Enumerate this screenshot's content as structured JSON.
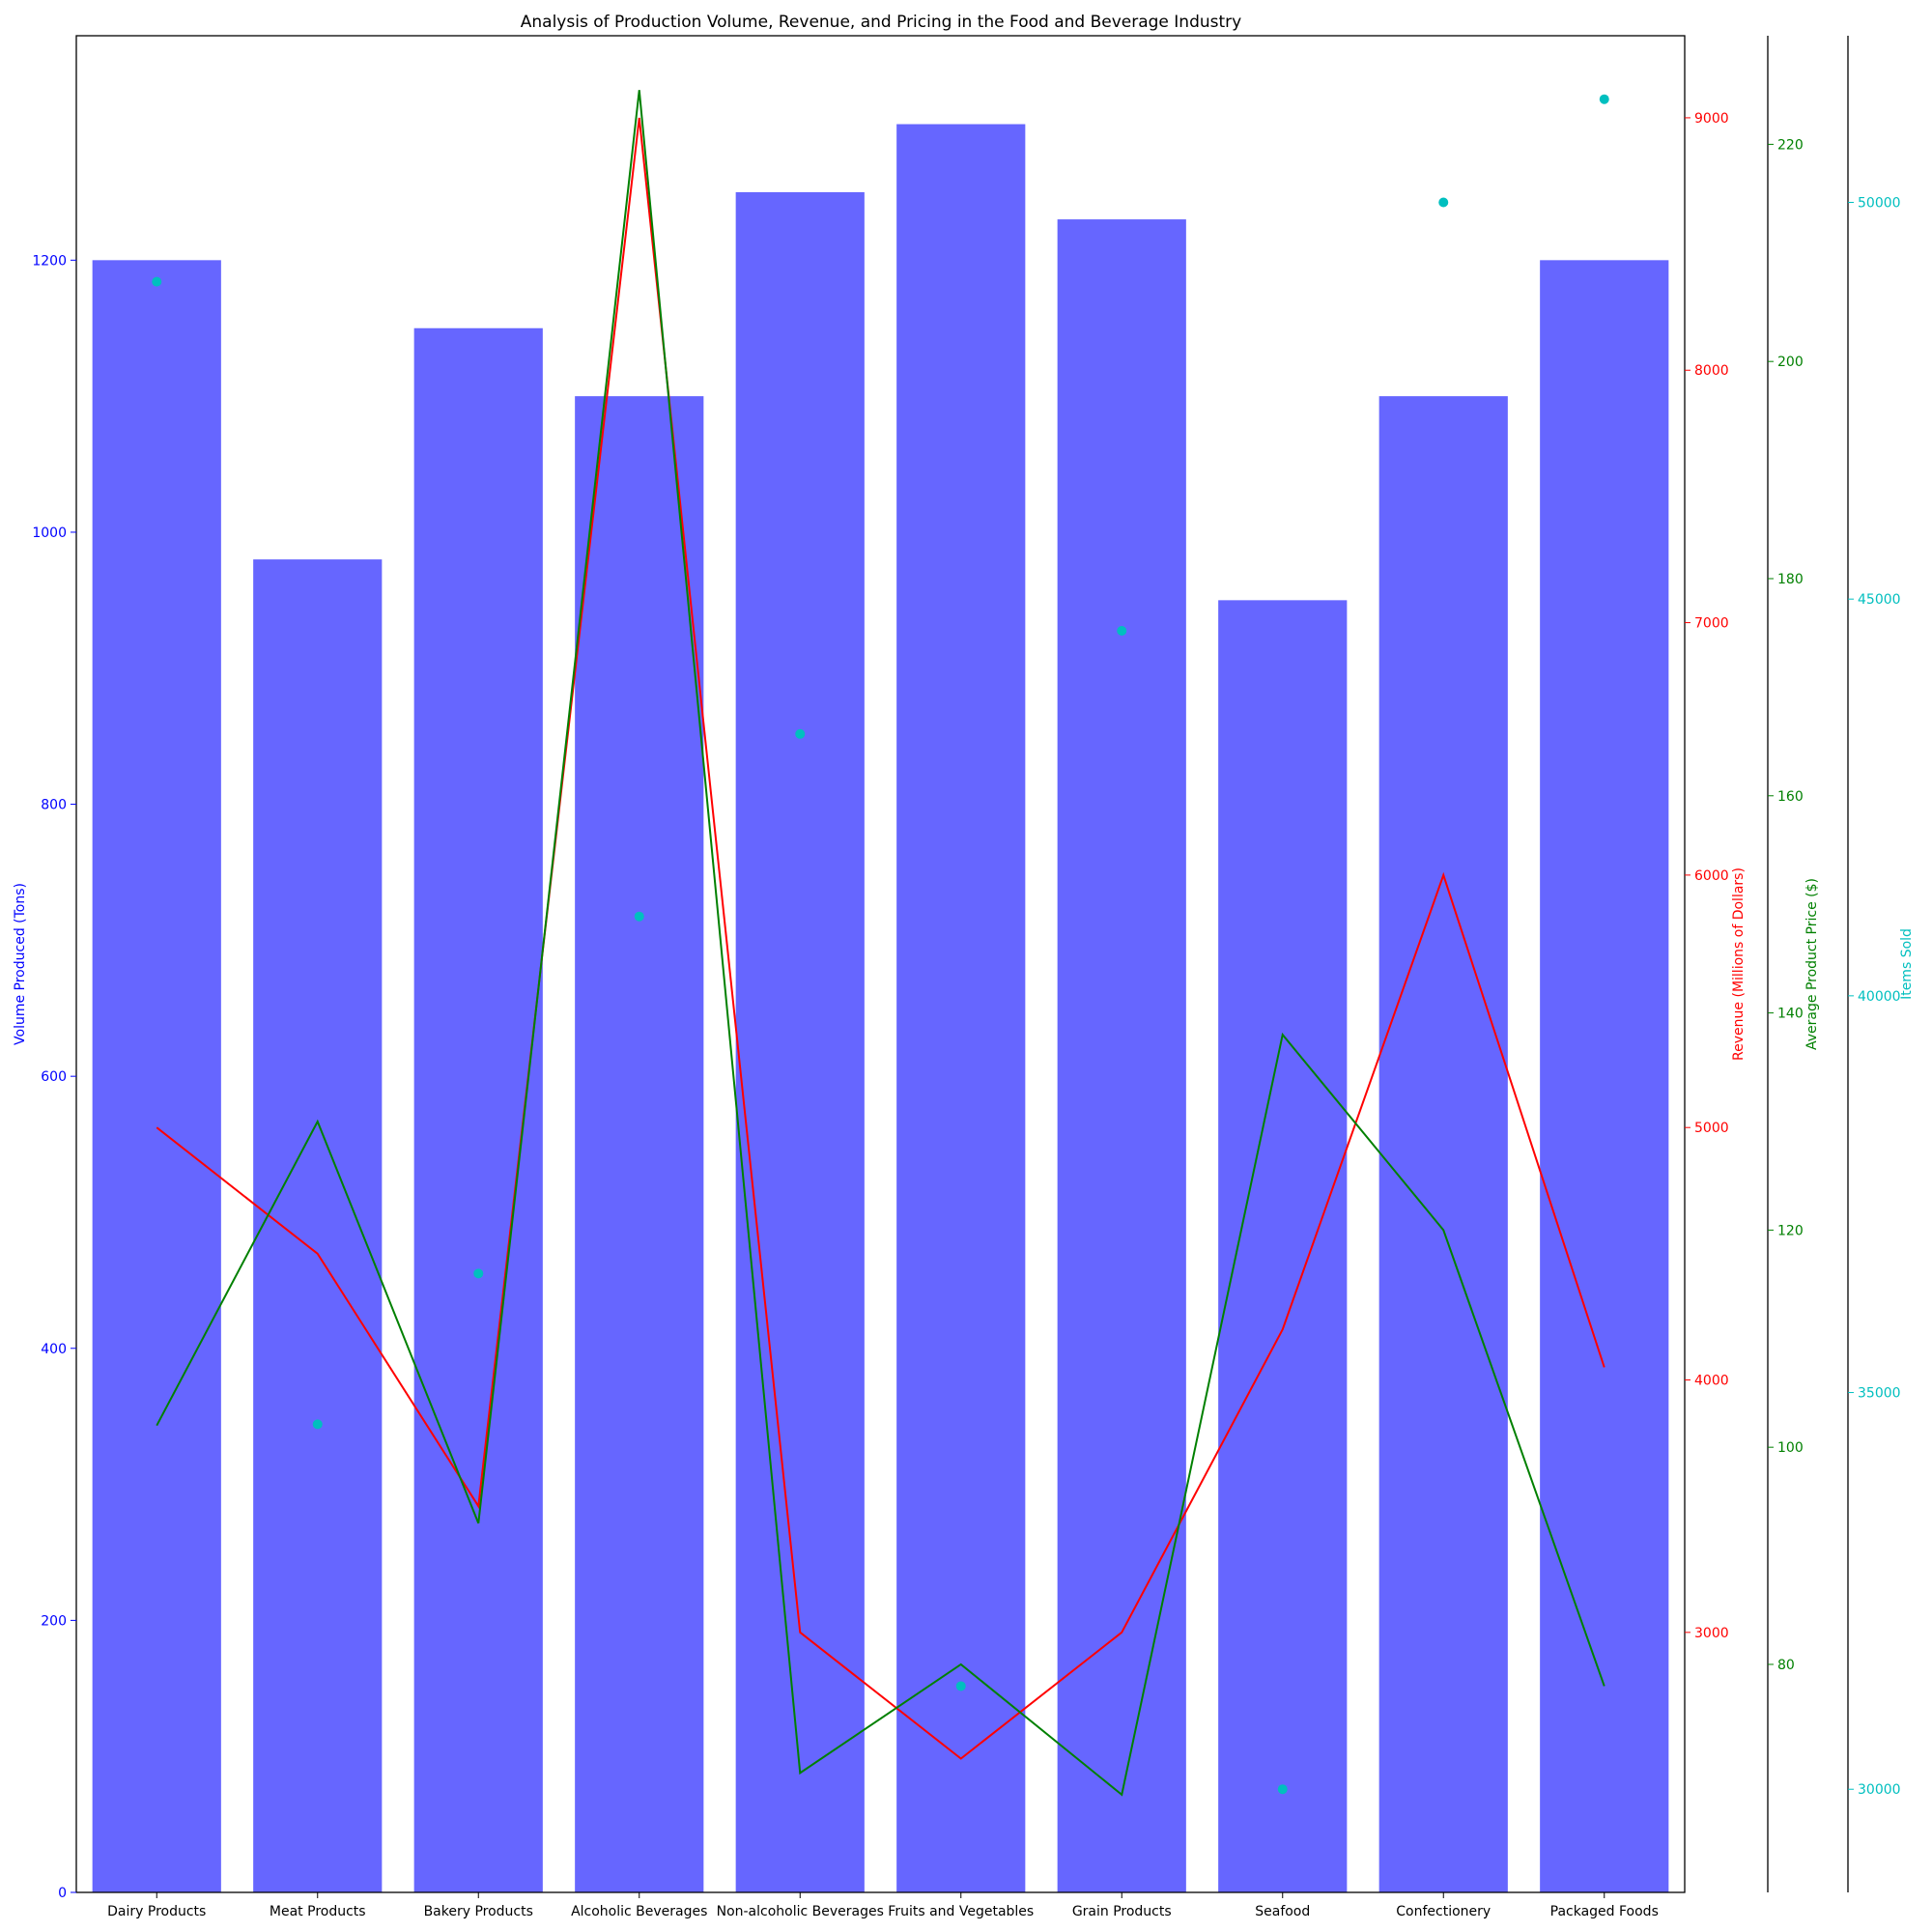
{
  "chart_data": {
    "type": "bar",
    "title": "Analysis of Production Volume, Revenue, and Pricing in the Food and Beverage Industry",
    "categories": [
      "Dairy Products",
      "Meat Products",
      "Bakery Products",
      "Alcoholic Beverages",
      "Non-alcoholic Beverages",
      "Fruits and Vegetables",
      "Grain Products",
      "Seafood",
      "Confectionery",
      "Packaged Foods"
    ],
    "axes": {
      "volume": {
        "label": "Volume Produced (Tons)",
        "color": "#0000ff",
        "ticks": [
          0,
          200,
          400,
          600,
          800,
          1000,
          1200
        ],
        "range": [
          0,
          1365
        ]
      },
      "revenue": {
        "label": "Revenue (Millions of Dollars)",
        "color": "#ff0000",
        "ticks": [
          3000,
          4000,
          5000,
          6000,
          7000,
          8000,
          9000
        ],
        "range": [
          1970,
          9325
        ]
      },
      "price": {
        "label": "Average Product Price ($)",
        "color": "#008000",
        "ticks": [
          80,
          100,
          120,
          140,
          160,
          180,
          200,
          220
        ],
        "range": [
          59,
          230
        ]
      },
      "items": {
        "label": "Items Sold",
        "color": "#00bfbf",
        "ticks": [
          30000,
          35000,
          40000,
          45000,
          50000
        ],
        "range": [
          28700,
          52100
        ]
      }
    },
    "series": [
      {
        "name": "Volume Produced (Tons)",
        "kind": "bar",
        "axis": "volume",
        "color": "#6666ff",
        "values": [
          1200,
          980,
          1150,
          1100,
          1250,
          1300,
          1230,
          950,
          1100,
          1200
        ]
      },
      {
        "name": "Revenue (Millions of Dollars)",
        "kind": "line",
        "axis": "revenue",
        "color": "#ff0000",
        "values": [
          5000,
          4500,
          3500,
          9000,
          3000,
          2500,
          3000,
          4200,
          6000,
          4050
        ]
      },
      {
        "name": "Average Product Price ($)",
        "kind": "line",
        "axis": "price",
        "color": "#008000",
        "values": [
          102,
          130,
          93,
          225,
          70,
          80,
          68,
          138,
          120,
          78
        ]
      },
      {
        "name": "Items Sold",
        "kind": "scatter",
        "axis": "items",
        "color": "#00bfbf",
        "values": [
          49000,
          34600,
          36500,
          41000,
          43300,
          31300,
          44600,
          30000,
          50000,
          51300
        ]
      }
    ],
    "grid": false
  }
}
